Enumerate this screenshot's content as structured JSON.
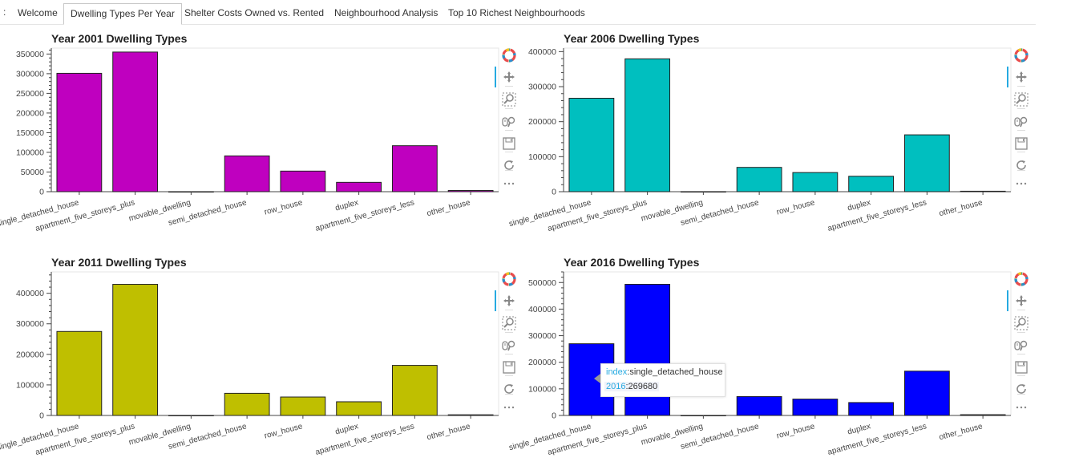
{
  "tabs": {
    "prefix": ":",
    "items": [
      "Welcome",
      "Dwelling Types Per Year",
      "Shelter Costs Owned vs. Rented",
      "Neighbourhood Analysis",
      "Top 10 Richest Neighbourhoods"
    ],
    "active_index": 1
  },
  "toolbar_icons": [
    "bokeh-logo-icon",
    "pan-icon",
    "box-zoom-icon",
    "wheel-zoom-icon",
    "save-icon",
    "reset-icon",
    "more-icon"
  ],
  "tooltip": {
    "index_key": "index",
    "index_value": "single_detached_house",
    "year_key": "2016",
    "year_value": "269680"
  },
  "chart_data": [
    {
      "type": "bar",
      "title": "Year 2001 Dwelling Types",
      "color": "#bf00bf",
      "categories": [
        "single_detached_house",
        "apartment_five_storeys_plus",
        "movable_dwelling",
        "semi_detached_house",
        "row_house",
        "duplex",
        "apartment_five_storeys_less",
        "other_house"
      ],
      "values": [
        300930,
        355015,
        75,
        90995,
        52355,
        23785,
        116900,
        3040
      ],
      "ylim": [
        0,
        365000
      ],
      "yticks": [
        0,
        50000,
        100000,
        150000,
        200000,
        250000,
        300000,
        350000
      ]
    },
    {
      "type": "bar",
      "title": "Year 2006 Dwelling Types",
      "color": "#00bfbf",
      "categories": [
        "single_detached_house",
        "apartment_five_storeys_plus",
        "movable_dwelling",
        "semi_detached_house",
        "row_house",
        "duplex",
        "apartment_five_storeys_less",
        "other_house"
      ],
      "values": [
        266860,
        379400,
        165,
        69430,
        54690,
        44095,
        162400,
        1335
      ],
      "ylim": [
        0,
        410000
      ],
      "yticks": [
        0,
        100000,
        200000,
        300000,
        400000
      ]
    },
    {
      "type": "bar",
      "title": "Year 2011 Dwelling Types",
      "color": "#bfbf00",
      "categories": [
        "single_detached_house",
        "apartment_five_storeys_plus",
        "movable_dwelling",
        "semi_detached_house",
        "row_house",
        "duplex",
        "apartment_five_storeys_less",
        "other_house"
      ],
      "values": [
        274940,
        429220,
        100,
        72480,
        60355,
        44750,
        163895,
        2165
      ],
      "ylim": [
        0,
        470000
      ],
      "yticks": [
        0,
        100000,
        200000,
        300000,
        400000
      ]
    },
    {
      "type": "bar",
      "title": "Year 2016 Dwelling Types",
      "color": "#0000ff",
      "categories": [
        "single_detached_house",
        "apartment_five_storeys_plus",
        "movable_dwelling",
        "semi_detached_house",
        "row_house",
        "duplex",
        "apartment_five_storeys_less",
        "other_house"
      ],
      "values": [
        269680,
        493270,
        95,
        71200,
        61565,
        48585,
        166715,
        2845
      ],
      "ylim": [
        0,
        540000
      ],
      "yticks": [
        0,
        100000,
        200000,
        300000,
        400000,
        500000
      ]
    }
  ]
}
